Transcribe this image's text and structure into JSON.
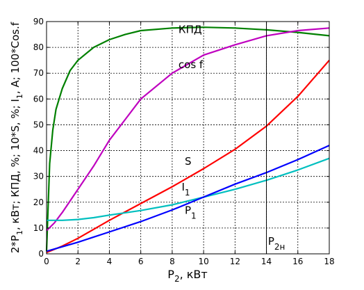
{
  "chart_data": {
    "type": "line",
    "xlabel_main": "P",
    "xlabel_sub": "2",
    "xlabel_rest": ", кВт",
    "ylabel_parts": [
      {
        "t": "2*P",
        "sub": false
      },
      {
        "t": "1",
        "sub": true
      },
      {
        "t": ", кВт; КПД, %; 10*S, %; I",
        "sub": false
      },
      {
        "t": "1",
        "sub": true
      },
      {
        "t": ", A; 100*Cos.f",
        "sub": false
      }
    ],
    "xlim": [
      0,
      18
    ],
    "ylim": [
      0,
      90
    ],
    "x_ticks": [
      0,
      2,
      4,
      6,
      8,
      10,
      12,
      14,
      16,
      18
    ],
    "y_ticks": [
      0,
      10,
      20,
      30,
      40,
      50,
      60,
      70,
      80,
      90
    ],
    "grid": true,
    "series": [
      {
        "name": "КПД",
        "color": "#008000",
        "points": [
          [
            0,
            1
          ],
          [
            0.2,
            35
          ],
          [
            0.4,
            48
          ],
          [
            0.6,
            56
          ],
          [
            1,
            64
          ],
          [
            1.5,
            71
          ],
          [
            2,
            75
          ],
          [
            3,
            80
          ],
          [
            4,
            83
          ],
          [
            5,
            85
          ],
          [
            6,
            86.5
          ],
          [
            8,
            87.5
          ],
          [
            10,
            87.8
          ],
          [
            12,
            87.5
          ],
          [
            14,
            86.8
          ],
          [
            16,
            85.8
          ],
          [
            18,
            84.5
          ]
        ]
      },
      {
        "name": "cos f",
        "color": "#bf00bf",
        "points": [
          [
            0,
            9
          ],
          [
            0.5,
            12
          ],
          [
            1,
            16
          ],
          [
            2,
            25
          ],
          [
            3,
            34
          ],
          [
            4,
            44
          ],
          [
            5,
            52
          ],
          [
            6,
            60
          ],
          [
            8,
            70
          ],
          [
            10,
            77
          ],
          [
            12,
            81
          ],
          [
            14,
            84.5
          ],
          [
            16,
            86.5
          ],
          [
            18,
            87.5
          ]
        ]
      },
      {
        "name": "S",
        "color": "#ff0000",
        "points": [
          [
            0,
            0.5
          ],
          [
            1,
            3
          ],
          [
            2,
            6
          ],
          [
            4,
            13
          ],
          [
            6,
            19.5
          ],
          [
            8,
            26
          ],
          [
            10,
            33
          ],
          [
            12,
            40.5
          ],
          [
            14,
            49.5
          ],
          [
            16,
            61
          ],
          [
            18,
            75
          ]
        ]
      },
      {
        "name": "I",
        "sub": "1",
        "color": "#00bfbf",
        "points": [
          [
            0,
            13
          ],
          [
            1,
            13
          ],
          [
            2,
            13.3
          ],
          [
            3,
            14
          ],
          [
            4,
            15
          ],
          [
            6,
            16.8
          ],
          [
            8,
            19
          ],
          [
            10,
            22
          ],
          [
            12,
            25
          ],
          [
            14,
            28.5
          ],
          [
            16,
            32.5
          ],
          [
            18,
            37
          ]
        ]
      },
      {
        "name": "P",
        "sub": "1",
        "color": "#0000ff",
        "points": [
          [
            0,
            1
          ],
          [
            2,
            4.5
          ],
          [
            4,
            8.5
          ],
          [
            6,
            12.5
          ],
          [
            8,
            17
          ],
          [
            10,
            22
          ],
          [
            12,
            27
          ],
          [
            14,
            31.5
          ],
          [
            16,
            36.5
          ],
          [
            18,
            42
          ]
        ]
      }
    ],
    "labels": [
      {
        "text": "КПД",
        "x": 8.4,
        "y": 85.5
      },
      {
        "text": "cos f",
        "x": 8.4,
        "y": 72
      },
      {
        "text": "S",
        "x": 8.8,
        "y": 34.5
      },
      {
        "text": "I",
        "sub": "1",
        "x": 8.6,
        "y": 24.5
      },
      {
        "text": "P",
        "sub": "1",
        "x": 8.8,
        "y": 15.5
      },
      {
        "text": "P",
        "sub": "2н",
        "x": 14.1,
        "y": 3.5
      }
    ],
    "vline": {
      "x": 14
    }
  }
}
